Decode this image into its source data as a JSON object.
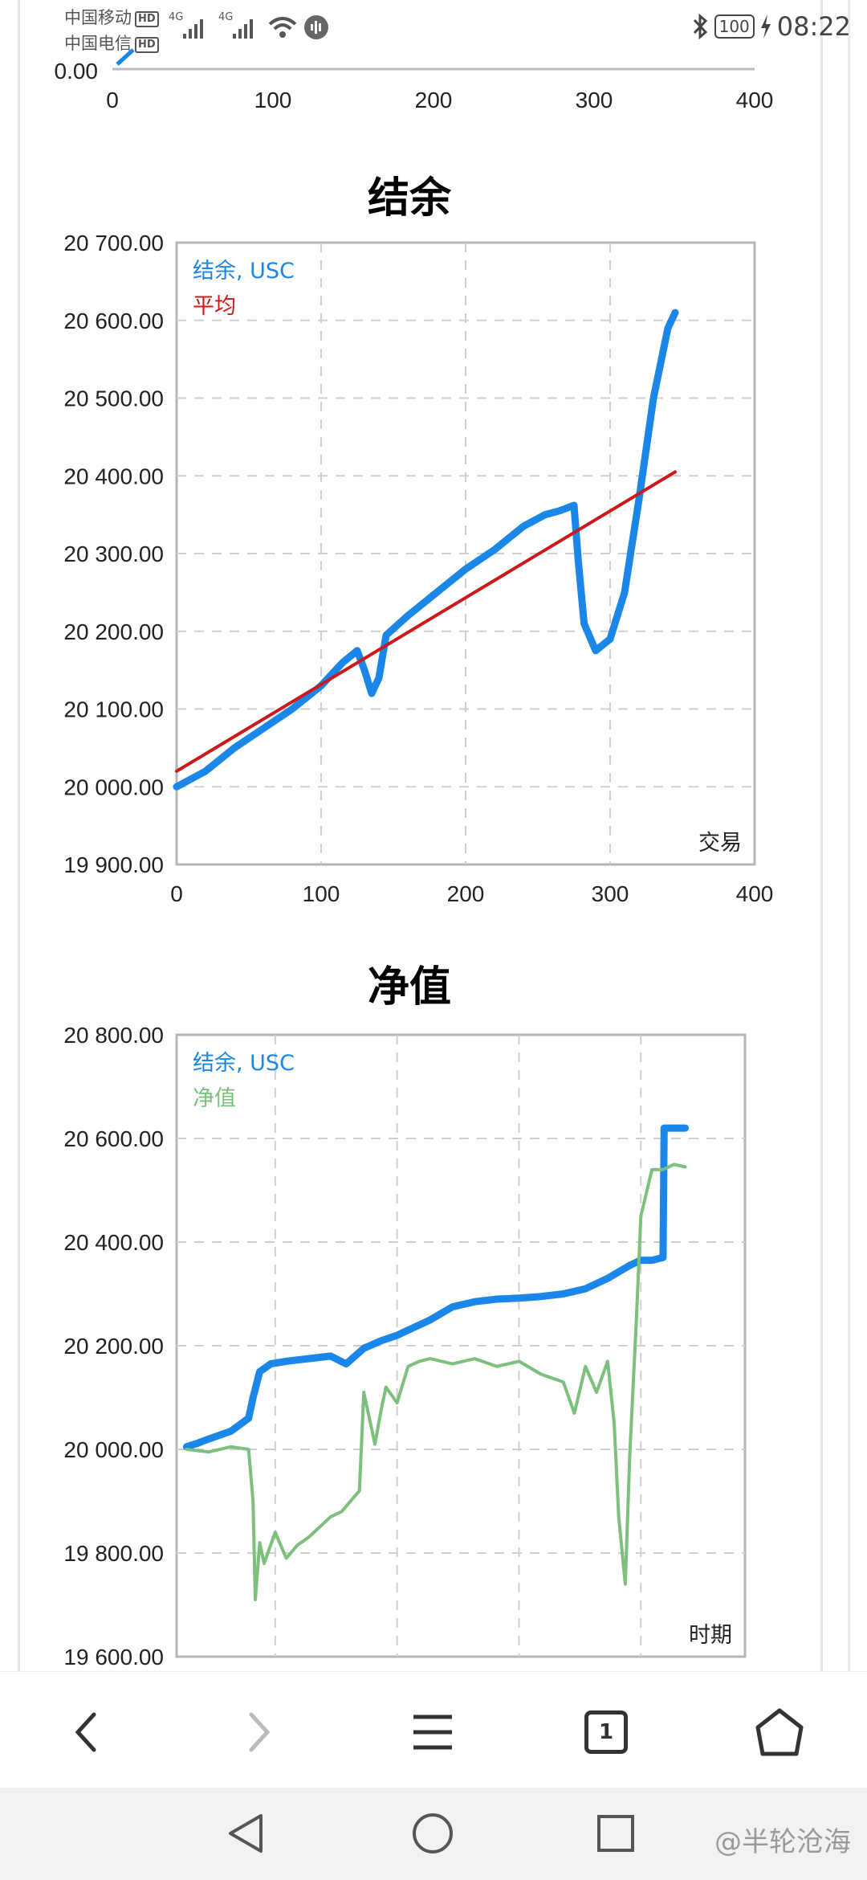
{
  "status_bar": {
    "carrier1": "中国移动",
    "carrier2": "中国电信",
    "hd": "HD",
    "network": "4G",
    "battery": "100",
    "time": "08:22"
  },
  "top_partial": {
    "y_tick": "0.00",
    "x_ticks": [
      "0",
      "100",
      "200",
      "300",
      "400"
    ]
  },
  "balance_chart": {
    "title": "结余",
    "legend": [
      {
        "label": "结余, USC",
        "color": "#1a87e8"
      },
      {
        "label": "平均",
        "color": "#cc1a1a"
      }
    ],
    "x_caption": "交易",
    "y_ticks": [
      "20 700.00",
      "20 600.00",
      "20 500.00",
      "20 400.00",
      "20 300.00",
      "20 200.00",
      "20 100.00",
      "20 000.00",
      "19 900.00"
    ],
    "x_ticks": [
      "0",
      "100",
      "200",
      "300",
      "400"
    ]
  },
  "equity_chart": {
    "title": "净值",
    "legend": [
      {
        "label": "结余, USC",
        "color": "#1a87e8"
      },
      {
        "label": "净值",
        "color": "#7dbf7d"
      }
    ],
    "x_caption": "时期",
    "y_ticks": [
      "20 800.00",
      "20 600.00",
      "20 400.00",
      "20 200.00",
      "20 000.00",
      "19 800.00",
      "19 600.00"
    ]
  },
  "chart_data": [
    {
      "type": "line",
      "title": "结余",
      "xlabel": "交易",
      "ylabel": "",
      "xlim": [
        0,
        400
      ],
      "ylim": [
        19900,
        20700
      ],
      "grid": true,
      "legend_position": "top-left",
      "series": [
        {
          "name": "结余, USC",
          "color": "#1a87e8",
          "x": [
            0,
            20,
            40,
            60,
            80,
            100,
            115,
            125,
            130,
            135,
            140,
            145,
            160,
            180,
            200,
            220,
            240,
            255,
            265,
            275,
            278,
            282,
            290,
            300,
            310,
            320,
            330,
            340,
            345
          ],
          "y": [
            20000,
            20020,
            20050,
            20075,
            20100,
            20130,
            20160,
            20175,
            20150,
            20120,
            20140,
            20195,
            20220,
            20250,
            20280,
            20305,
            20335,
            20350,
            20355,
            20362,
            20290,
            20210,
            20175,
            20190,
            20250,
            20370,
            20500,
            20590,
            20610
          ]
        },
        {
          "name": "平均",
          "color": "#cc1a1a",
          "x": [
            0,
            345
          ],
          "y": [
            20020,
            20405
          ]
        }
      ]
    },
    {
      "type": "line",
      "title": "净值",
      "xlabel": "时期",
      "ylabel": "",
      "ylim": [
        19600,
        20800
      ],
      "grid": true,
      "legend_position": "top-left",
      "series": [
        {
          "name": "结余, USC",
          "color": "#1a87e8",
          "x": [
            0,
            5,
            10,
            20,
            28,
            30,
            33,
            38,
            45,
            55,
            65,
            72,
            80,
            88,
            95,
            100,
            110,
            120,
            130,
            140,
            150,
            160,
            170,
            180,
            190,
            200,
            205,
            210,
            215,
            215.5,
            225
          ],
          "y": [
            20005,
            20012,
            20020,
            20035,
            20060,
            20100,
            20150,
            20165,
            20170,
            20175,
            20180,
            20165,
            20195,
            20210,
            20220,
            20230,
            20250,
            20275,
            20285,
            20290,
            20292,
            20295,
            20300,
            20310,
            20330,
            20355,
            20365,
            20365,
            20370,
            20620,
            20620
          ]
        },
        {
          "name": "净值",
          "color": "#7dbf7d",
          "x": [
            0,
            10,
            20,
            28,
            30,
            31,
            33,
            35,
            40,
            45,
            50,
            55,
            60,
            65,
            70,
            78,
            80,
            85,
            88,
            90,
            95,
            100,
            105,
            110,
            120,
            130,
            140,
            150,
            160,
            170,
            175,
            180,
            185,
            190,
            193,
            195,
            198,
            200,
            203,
            205,
            210,
            215,
            220,
            225
          ],
          "y": [
            20000,
            19995,
            20005,
            20000,
            19900,
            19710,
            19820,
            19780,
            19840,
            19790,
            19815,
            19830,
            19850,
            19870,
            19880,
            19920,
            20110,
            20010,
            20080,
            20120,
            20090,
            20160,
            20170,
            20175,
            20165,
            20175,
            20160,
            20170,
            20145,
            20130,
            20070,
            20160,
            20110,
            20170,
            20050,
            19870,
            19740,
            19990,
            20250,
            20450,
            20540,
            20540,
            20550,
            20545
          ]
        }
      ]
    }
  ],
  "browser_bar": {
    "back_icon": "chevron-left-icon",
    "forward_icon": "chevron-right-icon",
    "menu_icon": "menu-icon",
    "tabs_count": "1",
    "home_icon": "home-icon"
  },
  "nav_bar": {
    "watermark": "@半轮沧海"
  }
}
